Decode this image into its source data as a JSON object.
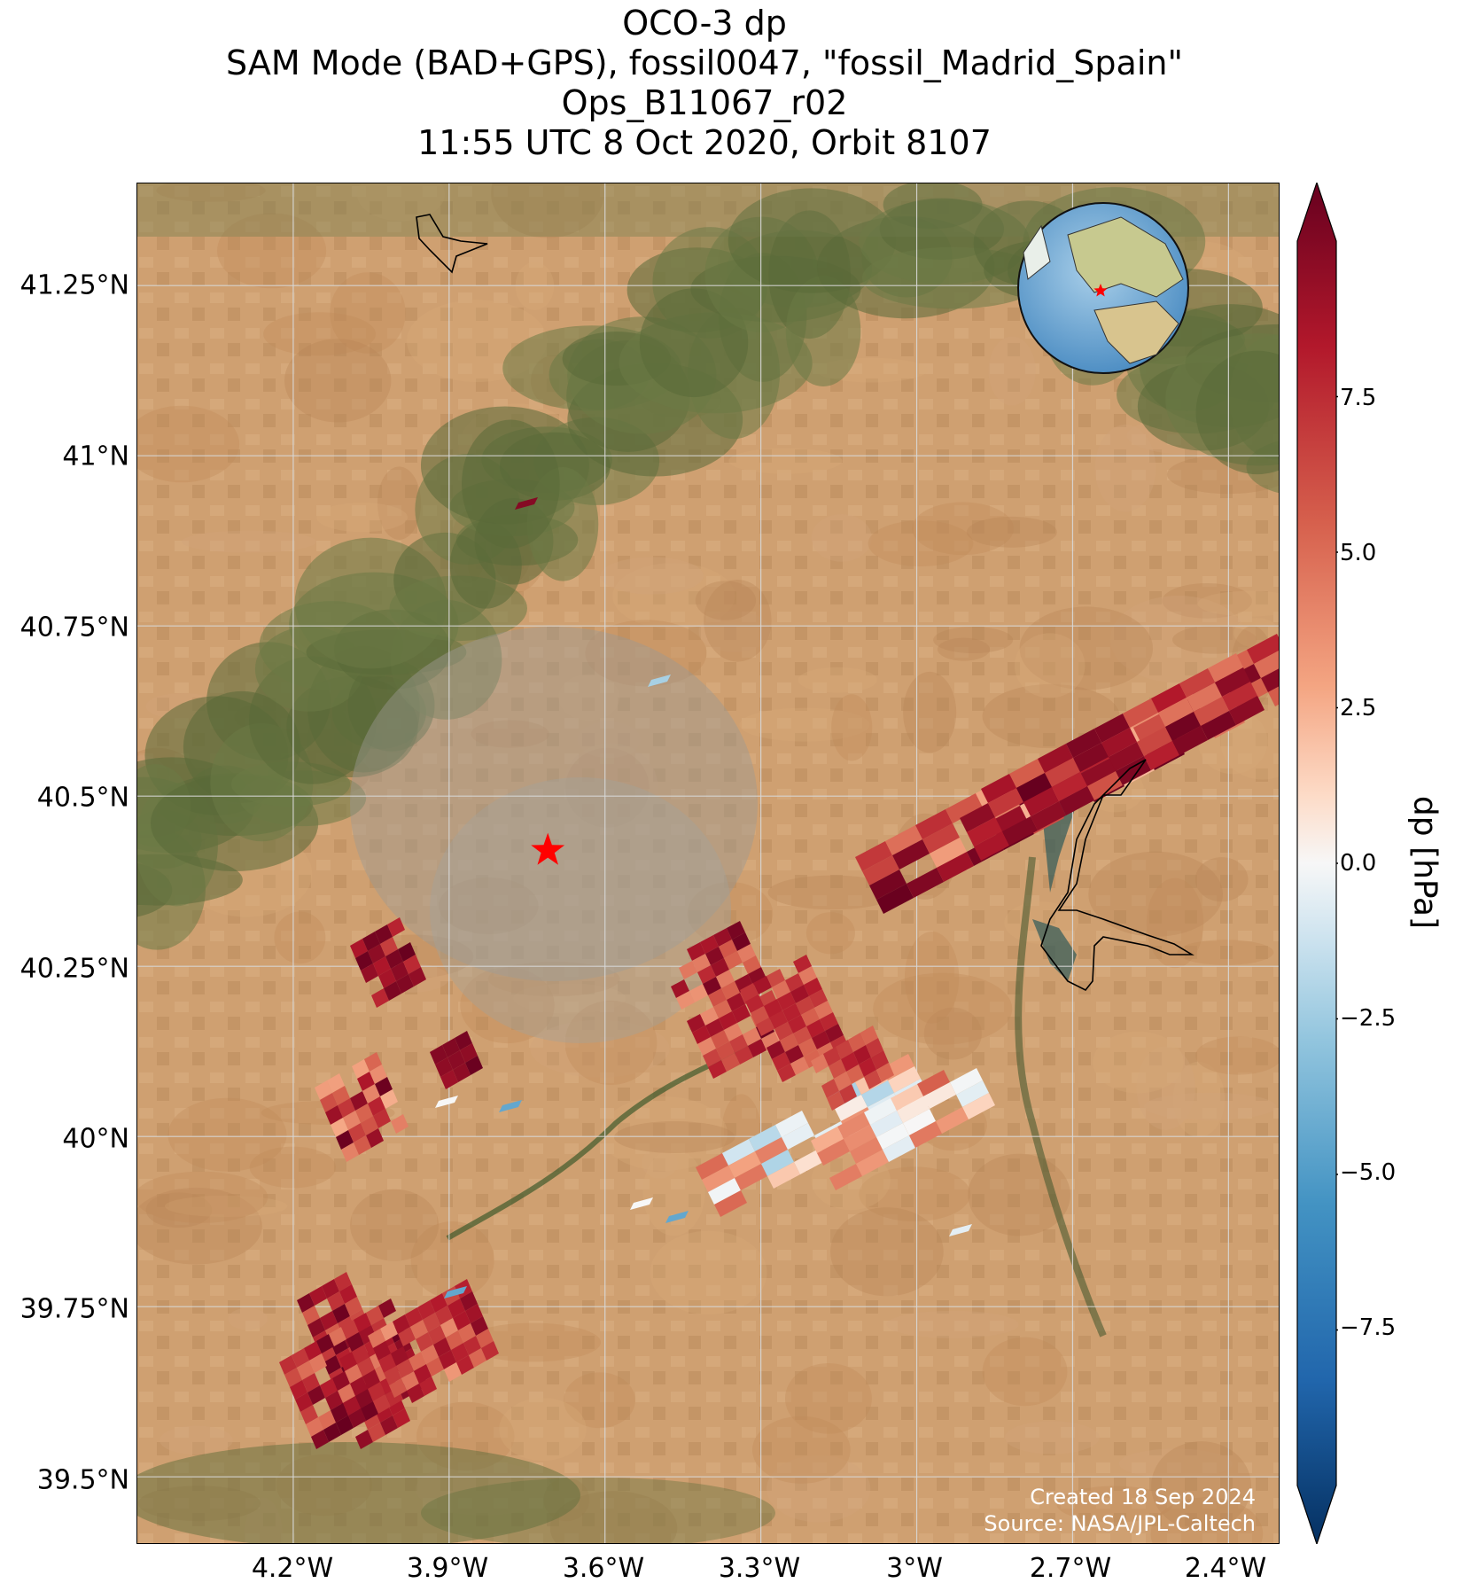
{
  "title": {
    "line1": "OCO-3 dp",
    "line2": "SAM Mode (BAD+GPS), fossil0047, \"fossil_Madrid_Spain\"",
    "line3": "Ops_B11067_r02",
    "line4": "11:55 UTC 8 Oct 2020, Orbit 8107"
  },
  "axes": {
    "lat_ticks": [
      "41.25°N",
      "41°N",
      "40.75°N",
      "40.5°N",
      "40.25°N",
      "40°N",
      "39.75°N",
      "39.5°N"
    ],
    "lon_ticks": [
      "4.2°W",
      "3.9°W",
      "3.6°W",
      "3.3°W",
      "3°W",
      "2.7°W",
      "2.4°W"
    ],
    "lat_values": [
      41.25,
      41.0,
      40.75,
      40.5,
      40.25,
      40.0,
      39.75,
      39.5
    ],
    "lon_values": [
      -4.2,
      -3.9,
      -3.6,
      -3.3,
      -3.0,
      -2.7,
      -2.4
    ],
    "lat_range": [
      39.4,
      41.4
    ],
    "lon_range": [
      -4.5,
      -2.3
    ],
    "grid": true
  },
  "colorbar": {
    "label": "dp [hPa]",
    "ticks": [
      "7.5",
      "5.0",
      "2.5",
      "0.0",
      "−2.5",
      "−5.0",
      "−7.5"
    ],
    "tick_values": [
      7.5,
      5.0,
      2.5,
      0.0,
      -2.5,
      -5.0,
      -7.5
    ],
    "range": [
      -10,
      10
    ],
    "colormap": "RdBu_r",
    "extend": "both"
  },
  "target": {
    "name": "fossil_Madrid_Spain",
    "lat": 40.42,
    "lon": -3.71,
    "marker": "red star"
  },
  "inset": {
    "type": "globe",
    "marker": "red star",
    "center": "Madrid"
  },
  "credits": {
    "created": "Created 18 Sep 2024",
    "source": "Source: NASA/JPL-Caltech"
  },
  "colors": {
    "map_base": "#c89a6c",
    "vegetation": "#5a6a38",
    "city": "#9a9a92",
    "grid": "#d8d8d8",
    "star": "#ff0000"
  }
}
